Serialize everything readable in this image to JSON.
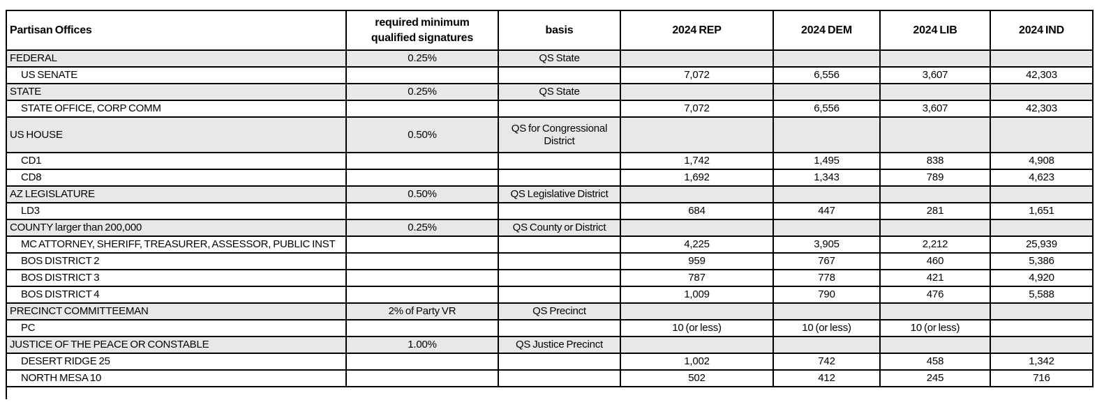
{
  "colors": {
    "category_row_bg": "#e8e8e8",
    "grid_border": "#000000",
    "page_bg": "#ffffff"
  },
  "table": {
    "columns": [
      {
        "label": "Partisan Offices"
      },
      {
        "label": "required minimum\nqualified signatures"
      },
      {
        "label": "basis"
      },
      {
        "label": "2024 REP"
      },
      {
        "label": "2024 DEM"
      },
      {
        "label": "2024 LIB"
      },
      {
        "label": "2024 IND"
      }
    ],
    "rows": [
      {
        "type": "category",
        "office": "FEDERAL",
        "signatures": "0.25%",
        "basis": "QS State",
        "rep": "",
        "dem": "",
        "lib": "",
        "ind": ""
      },
      {
        "type": "item",
        "office": "US SENATE",
        "signatures": "",
        "basis": "",
        "rep": "7,072",
        "dem": "6,556",
        "lib": "3,607",
        "ind": "42,303"
      },
      {
        "type": "category",
        "office": "STATE",
        "signatures": "0.25%",
        "basis": "QS State",
        "rep": "",
        "dem": "",
        "lib": "",
        "ind": ""
      },
      {
        "type": "item",
        "office": "STATE OFFICE, CORP COMM",
        "signatures": "",
        "basis": "",
        "rep": "7,072",
        "dem": "6,556",
        "lib": "3,607",
        "ind": "42,303"
      },
      {
        "type": "category",
        "office": "US HOUSE",
        "signatures": "0.50%",
        "basis": "QS for Congressional District",
        "rep": "",
        "dem": "",
        "lib": "",
        "ind": ""
      },
      {
        "type": "item",
        "office": "CD1",
        "signatures": "",
        "basis": "",
        "rep": "1,742",
        "dem": "1,495",
        "lib": "838",
        "ind": "4,908"
      },
      {
        "type": "item",
        "office": "CD8",
        "signatures": "",
        "basis": "",
        "rep": "1,692",
        "dem": "1,343",
        "lib": "789",
        "ind": "4,623"
      },
      {
        "type": "category",
        "office": "AZ LEGISLATURE",
        "signatures": "0.50%",
        "basis": "QS Legislative District",
        "rep": "",
        "dem": "",
        "lib": "",
        "ind": ""
      },
      {
        "type": "item",
        "office": "LD3",
        "signatures": "",
        "basis": "",
        "rep": "684",
        "dem": "447",
        "lib": "281",
        "ind": "1,651"
      },
      {
        "type": "category",
        "office": "COUNTY larger than 200,000",
        "signatures": "0.25%",
        "basis": "QS County or District",
        "rep": "",
        "dem": "",
        "lib": "",
        "ind": ""
      },
      {
        "type": "item",
        "office": "MC ATTORNEY, SHERIFF, TREASURER, ASSESSOR, PUBLIC INST",
        "signatures": "",
        "basis": "",
        "rep": "4,225",
        "dem": "3,905",
        "lib": "2,212",
        "ind": "25,939"
      },
      {
        "type": "item",
        "office": "BOS DISTRICT 2",
        "signatures": "",
        "basis": "",
        "rep": "959",
        "dem": "767",
        "lib": "460",
        "ind": "5,386"
      },
      {
        "type": "item",
        "office": "BOS DISTRICT 3",
        "signatures": "",
        "basis": "",
        "rep": "787",
        "dem": "778",
        "lib": "421",
        "ind": "4,920"
      },
      {
        "type": "item",
        "office": "BOS DISTRICT 4",
        "signatures": "",
        "basis": "",
        "rep": "1,009",
        "dem": "790",
        "lib": "476",
        "ind": "5,588"
      },
      {
        "type": "category",
        "office": "PRECINCT COMMITTEEMAN",
        "signatures": "2% of Party VR",
        "basis": "QS Precinct",
        "rep": "",
        "dem": "",
        "lib": "",
        "ind": ""
      },
      {
        "type": "item",
        "office": "PC",
        "signatures": "",
        "basis": "",
        "rep": "10 (or less)",
        "dem": "10 (or less)",
        "lib": "10 (or less)",
        "ind": ""
      },
      {
        "type": "category",
        "office": "JUSTICE OF THE PEACE OR CONSTABLE",
        "signatures": "1.00%",
        "basis": "QS Justice Precinct",
        "rep": "",
        "dem": "",
        "lib": "",
        "ind": ""
      },
      {
        "type": "item",
        "office": "DESERT RIDGE 25",
        "signatures": "",
        "basis": "",
        "rep": "1,002",
        "dem": "742",
        "lib": "458",
        "ind": "1,342"
      },
      {
        "type": "item",
        "office": "NORTH MESA 10",
        "signatures": "",
        "basis": "",
        "rep": "502",
        "dem": "412",
        "lib": "245",
        "ind": "716"
      }
    ]
  }
}
